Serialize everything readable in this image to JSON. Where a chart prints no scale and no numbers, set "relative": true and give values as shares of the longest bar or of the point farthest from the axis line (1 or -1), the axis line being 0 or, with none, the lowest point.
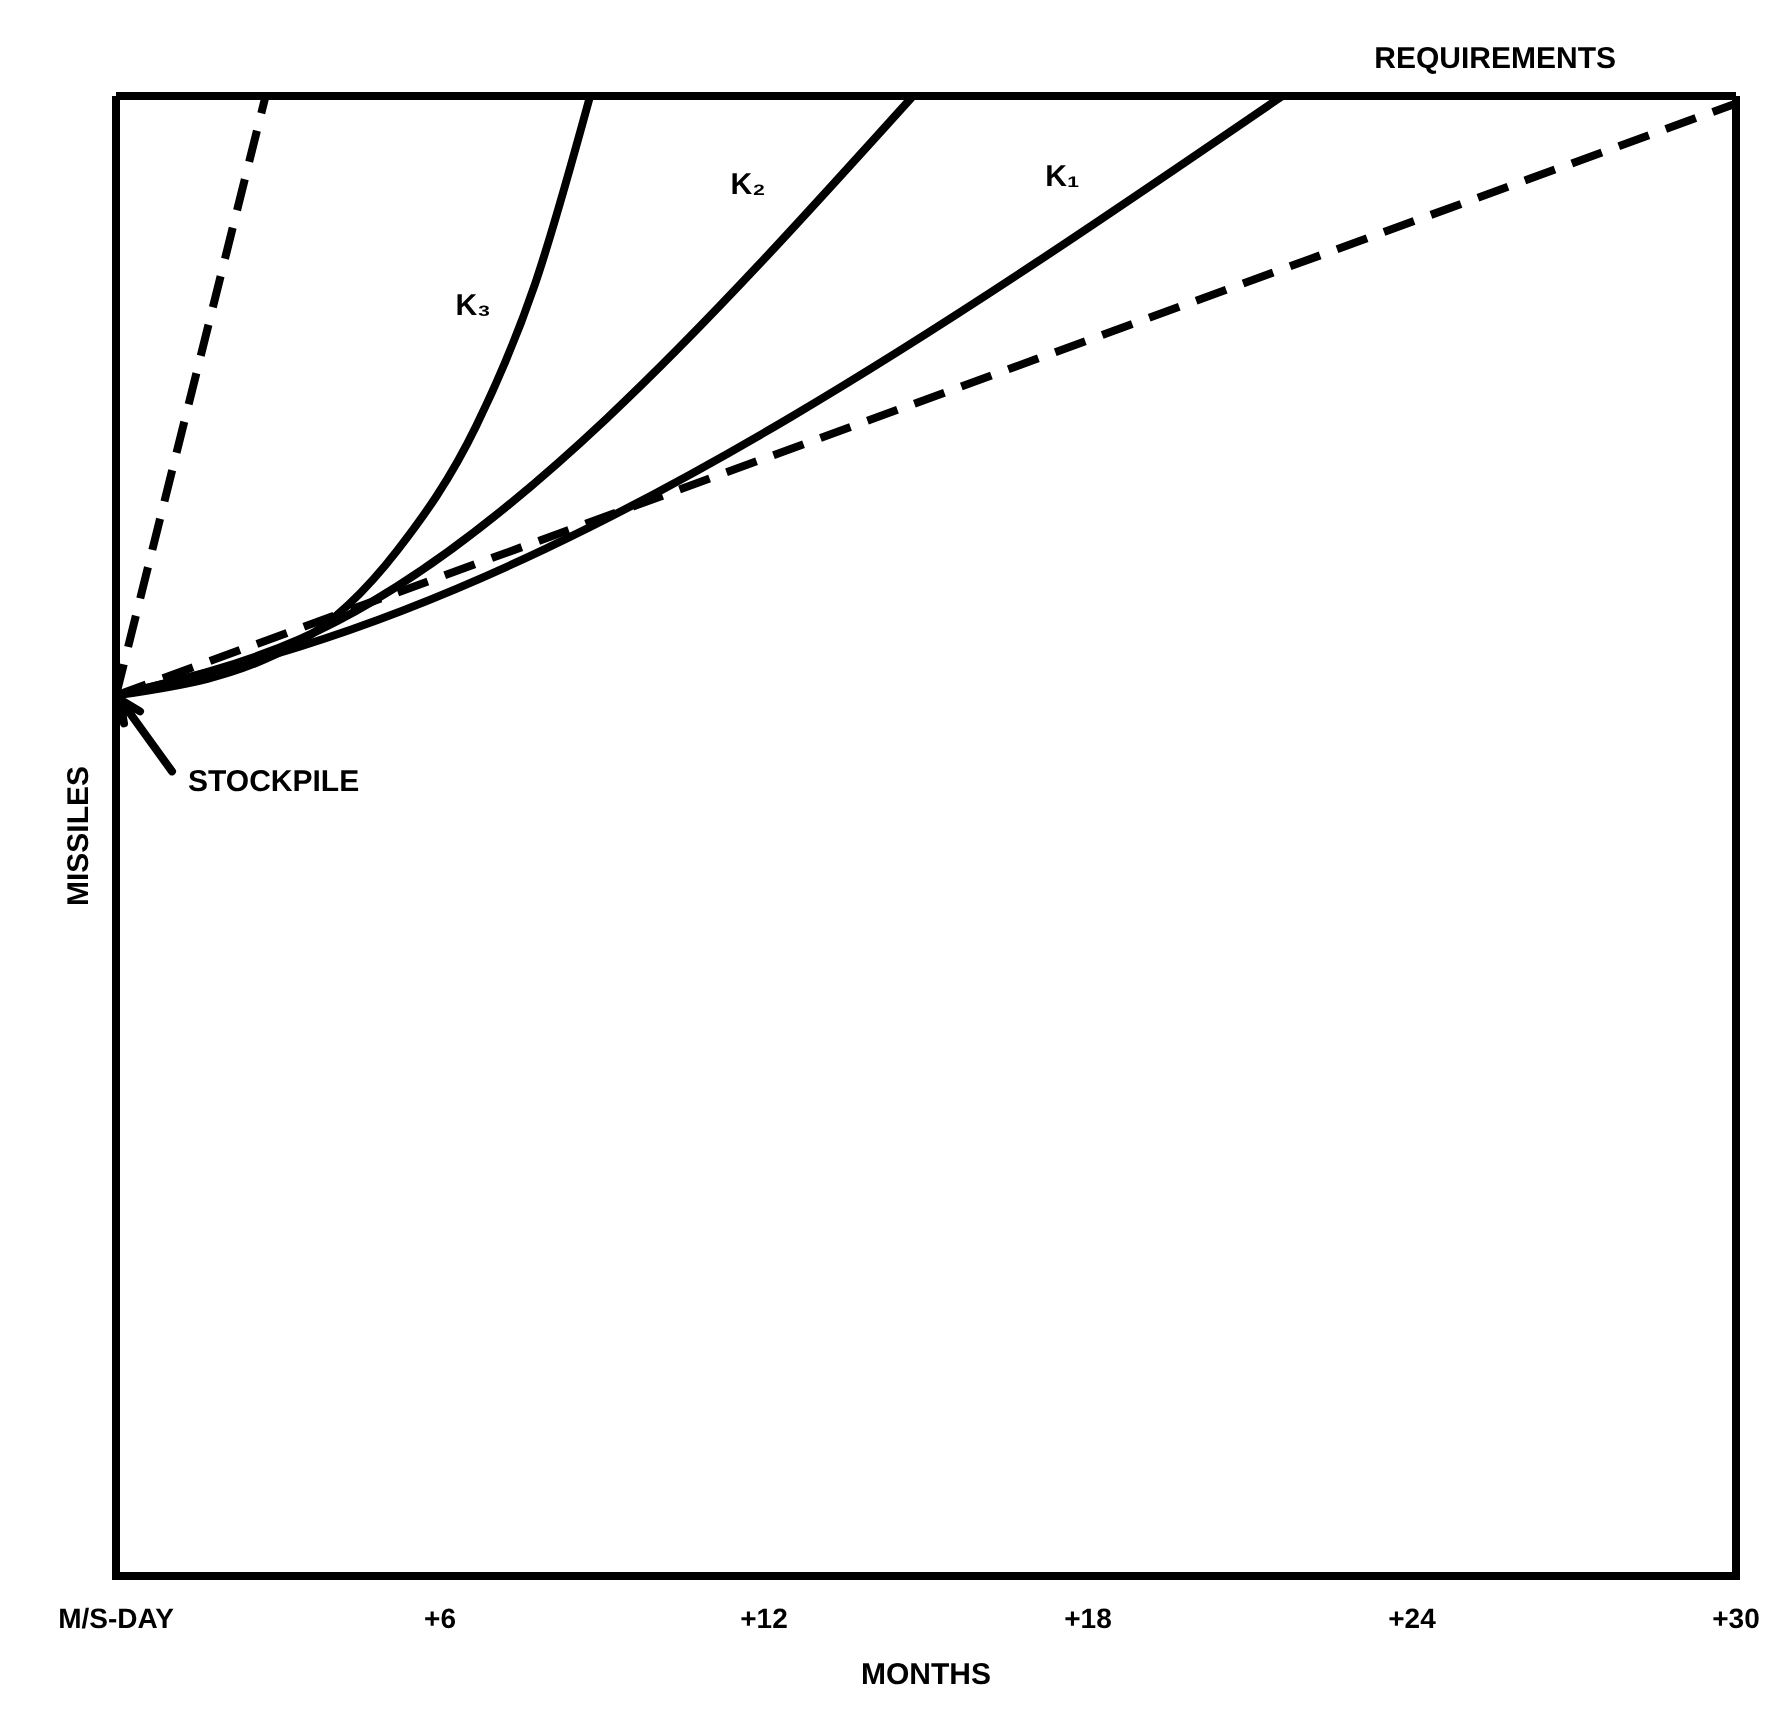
{
  "chart_data": {
    "type": "line",
    "relative": true,
    "xlabel": "MONTHS",
    "ylabel": "MISSILES",
    "xlim": [
      0,
      30
    ],
    "xticks": [
      {
        "value": 0,
        "label": "M/S-DAY"
      },
      {
        "value": 6,
        "label": "+6"
      },
      {
        "value": 12,
        "label": "+12"
      },
      {
        "value": 18,
        "label": "+18"
      },
      {
        "value": 24,
        "label": "+24"
      },
      {
        "value": 30,
        "label": "+30"
      }
    ],
    "series": [
      {
        "color": "#000000",
        "line_style": "dashed",
        "x": [
          0,
          2.77
        ],
        "values": [
          0.595,
          1
        ]
      },
      {
        "name": "K₃",
        "color": "#000000",
        "line_style": "solid",
        "x": [
          0,
          3.39,
          5.21,
          6.67,
          7.76,
          8.78
        ],
        "values": [
          0.595,
          0.631,
          0.693,
          0.777,
          0.873,
          1
        ]
      },
      {
        "name": "K₂",
        "color": "#000000",
        "line_style": "solid",
        "x": [
          0,
          3.4,
          14.76
        ],
        "values": [
          0.595,
          0.633,
          1
        ]
      },
      {
        "name": "K₁",
        "color": "#000000",
        "line_style": "solid",
        "x": [
          0,
          3.4,
          21.6
        ],
        "values": [
          0.595,
          0.628,
          1
        ]
      },
      {
        "color": "#000000",
        "line_style": "dashed",
        "x": [
          0,
          30
        ],
        "values": [
          0.595,
          0.995
        ]
      }
    ],
    "ref_lines": [
      {
        "axis": "y",
        "value": 1,
        "label": "REQUIREMENTS"
      }
    ],
    "annotations": [
      {
        "text": "STOCKPILE",
        "x": 0,
        "y": 0.595
      }
    ],
    "grid": false,
    "legend": false
  }
}
